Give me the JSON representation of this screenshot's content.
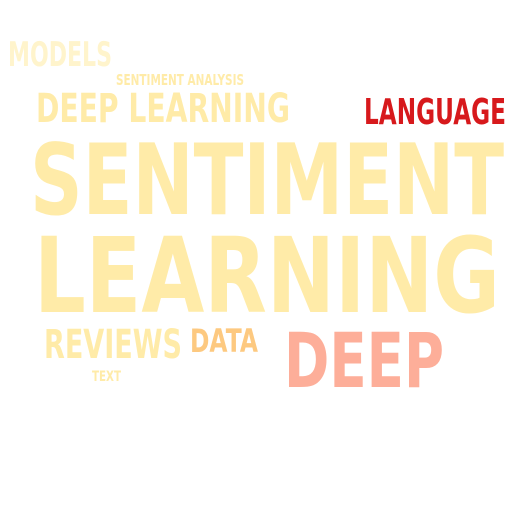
{
  "word_cloud": {
    "words": [
      {
        "text": "MODELS",
        "color": "#FFF4CC"
      },
      {
        "text": "SENTIMENT ANALYSIS",
        "color": "#FFEBA8"
      },
      {
        "text": "DEEP LEARNING",
        "color": "#FFEBA8"
      },
      {
        "text": "LANGUAGE",
        "color": "#D7191C"
      },
      {
        "text": "SENTIMENT",
        "color": "#FFEBA8"
      },
      {
        "text": "LEARNING",
        "color": "#FFEBA8"
      },
      {
        "text": "REVIEWS",
        "color": "#FFEBA8"
      },
      {
        "text": "DATA",
        "color": "#FDC980"
      },
      {
        "text": "DEEP",
        "color": "#FDAE99"
      },
      {
        "text": "TEXT",
        "color": "#FFEBA8"
      }
    ]
  }
}
